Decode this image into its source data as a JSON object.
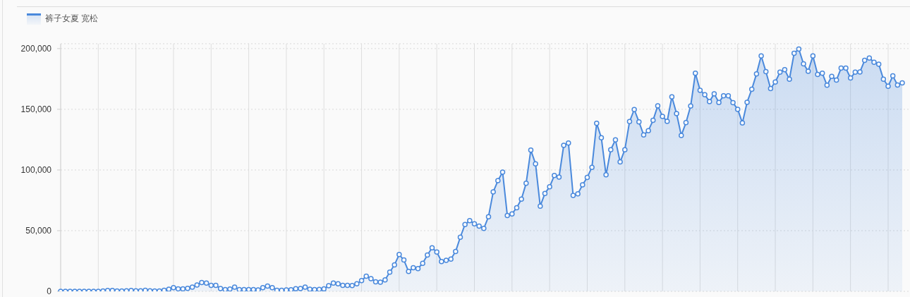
{
  "chart_data": {
    "type": "area",
    "categories": [
      null,
      null,
      null,
      null,
      null,
      null,
      null,
      null,
      null,
      null,
      null,
      null,
      null,
      null,
      null,
      null,
      null,
      null,
      null,
      null,
      null,
      null,
      null,
      null,
      null,
      null,
      null,
      null,
      null,
      null,
      null,
      null,
      null,
      null,
      null,
      null,
      null,
      null,
      null,
      null,
      null,
      null,
      null,
      null,
      null,
      null,
      null,
      null,
      null,
      null,
      null,
      null,
      null,
      null,
      null,
      null,
      null,
      null,
      null,
      null,
      null,
      null,
      null,
      null,
      null,
      null,
      null,
      null,
      null,
      null,
      null,
      null,
      null,
      null,
      null,
      null,
      null,
      null,
      null,
      null,
      null,
      null,
      null,
      null,
      null,
      null,
      null,
      null,
      null,
      null,
      null,
      null,
      null,
      null,
      null,
      null,
      null,
      null,
      null,
      null,
      null,
      null,
      null,
      null,
      null,
      null,
      null,
      null,
      null,
      null,
      null,
      null,
      null,
      null,
      null,
      null,
      null,
      null,
      null,
      null,
      null,
      null,
      null,
      null,
      null,
      null,
      null,
      null,
      null,
      null,
      null,
      null,
      null,
      null,
      null,
      null,
      null,
      null,
      null,
      null,
      null,
      null,
      null,
      null,
      null,
      null,
      null,
      null,
      null,
      null,
      null,
      null,
      null,
      null,
      null,
      null,
      null,
      null,
      null,
      null,
      null,
      null,
      null,
      null,
      null,
      null,
      null,
      null,
      null,
      null,
      null,
      null,
      null,
      null,
      null,
      null,
      null,
      null,
      null,
      null
    ],
    "series": [
      {
        "name": "裤子女夏 宽松",
        "color": "#4a89dc",
        "values": [
          0,
          0,
          0,
          0,
          0,
          0,
          0,
          0,
          0,
          300,
          700,
          700,
          300,
          300,
          500,
          700,
          500,
          500,
          900,
          500,
          300,
          300,
          900,
          1700,
          3100,
          2100,
          2100,
          2500,
          3500,
          5300,
          7300,
          6900,
          4900,
          4900,
          2300,
          1500,
          1900,
          3500,
          1500,
          1500,
          1500,
          1500,
          1100,
          3100,
          4300,
          3100,
          900,
          900,
          1100,
          1300,
          2200,
          2300,
          3500,
          1800,
          1500,
          1600,
          2000,
          4600,
          6800,
          6200,
          5000,
          5000,
          4800,
          6300,
          8800,
          12500,
          10400,
          7900,
          7600,
          9500,
          15800,
          21800,
          30300,
          25800,
          16400,
          19400,
          18800,
          23100,
          29900,
          35900,
          32400,
          24600,
          25600,
          26600,
          32800,
          44600,
          55100,
          58200,
          55700,
          53700,
          51800,
          61500,
          81900,
          91200,
          98200,
          62500,
          63800,
          68900,
          76000,
          89000,
          116400,
          105100,
          70200,
          80700,
          86100,
          95400,
          94100,
          120300,
          122200,
          79000,
          80300,
          87700,
          93900,
          102200,
          138500,
          126500,
          96000,
          116700,
          124800,
          106600,
          116700,
          139900,
          149800,
          139700,
          128900,
          132400,
          140900,
          152900,
          144200,
          140100,
          160300,
          146500,
          128500,
          139000,
          152700,
          179700,
          165700,
          162000,
          156400,
          162800,
          155600,
          161200,
          161200,
          155400,
          150000,
          138800,
          155800,
          166500,
          179100,
          194000,
          181000,
          167100,
          172500,
          180600,
          182600,
          174800,
          196100,
          199600,
          187400,
          181400,
          194000,
          178700,
          179700,
          169800,
          177100,
          174000,
          183900,
          183900,
          175800,
          180600,
          180800,
          190300,
          192200,
          188800,
          187200,
          174800,
          169000,
          177500,
          170000,
          171700
        ]
      }
    ],
    "ylim": [
      0,
      204000
    ],
    "yticks": [
      0,
      {
        "value": 50000,
        "label": "50,000"
      },
      {
        "value": 100000,
        "label": "100,000"
      },
      {
        "value": 150000,
        "label": "150,000"
      },
      {
        "value": 200000,
        "label": "200,000"
      }
    ],
    "grid": true,
    "legend": "top left",
    "marker": "circle"
  }
}
